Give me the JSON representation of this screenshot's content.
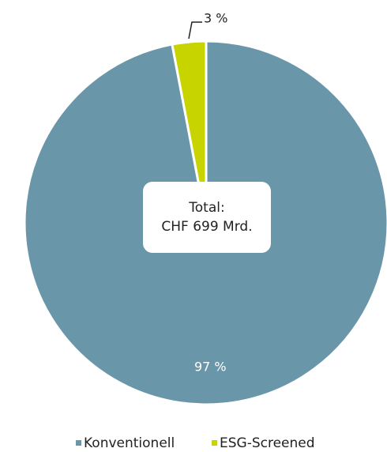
{
  "chart_data": {
    "type": "pie",
    "categories": [
      "Konventionell",
      "ESG-Screened"
    ],
    "values": [
      97,
      3
    ],
    "value_labels": [
      "97 %",
      "3 %"
    ],
    "colors": [
      "#6a96aa",
      "#c8d400"
    ],
    "annotation": [
      "Total:",
      "CHF 699 Mrd."
    ],
    "legend": "bottom"
  }
}
